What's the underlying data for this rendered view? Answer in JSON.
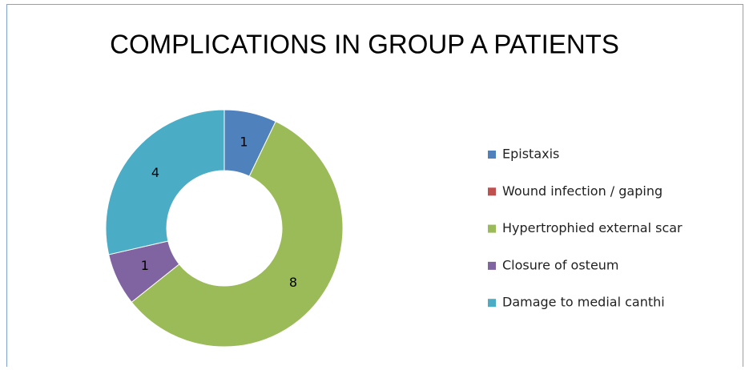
{
  "chart_data": {
    "type": "donut",
    "title": "COMPLICATIONS IN GROUP A PATIENTS",
    "categories": [
      "Epistaxis",
      "Wound infection / gaping",
      "Hypertrophied external scar",
      "Closure of osteum",
      "Damage to medial canthi"
    ],
    "values": [
      1,
      0,
      8,
      1,
      4
    ],
    "colors": [
      "#4f81bd",
      "#c0504d",
      "#9bbb59",
      "#8064a2",
      "#4bacc6"
    ],
    "legend": "right"
  }
}
